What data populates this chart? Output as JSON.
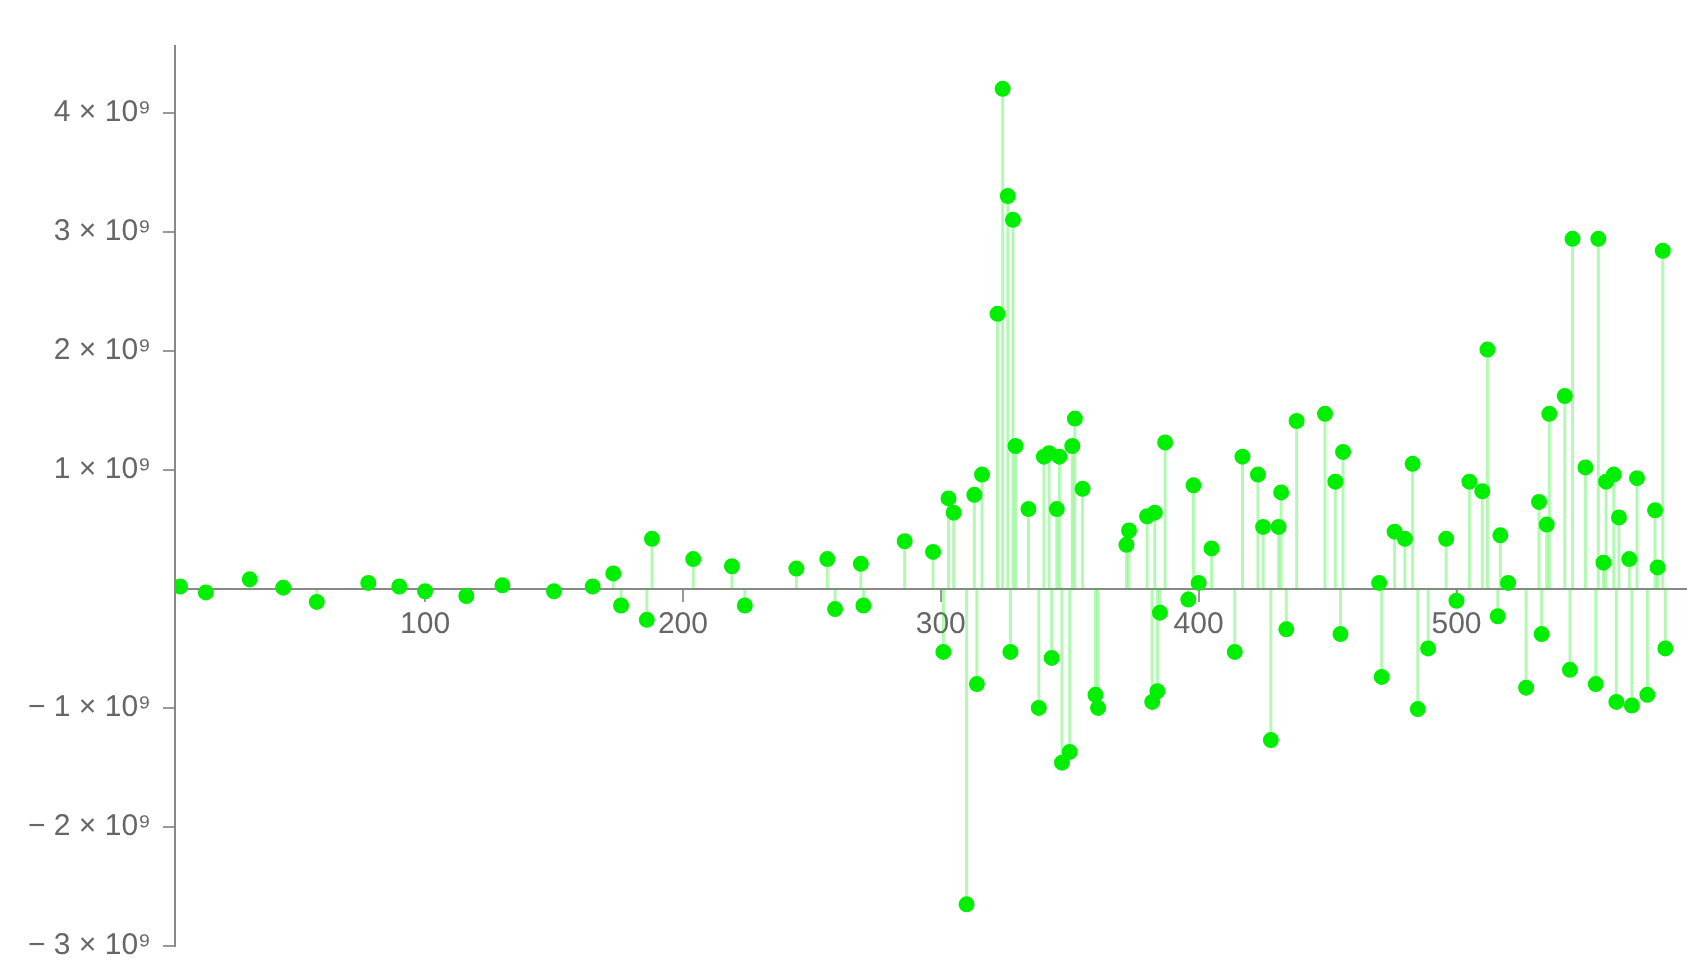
{
  "chart_data": {
    "type": "lollipop",
    "color": "#00ee00",
    "marker": "circle",
    "x": [
      5,
      15,
      32,
      45,
      58,
      78,
      90,
      100,
      116,
      130,
      150,
      165,
      173,
      176,
      186,
      188,
      204,
      219,
      224,
      244,
      256,
      259,
      269,
      270,
      286,
      297,
      301,
      303,
      305,
      310,
      313,
      314,
      316,
      322,
      324,
      326,
      327,
      328,
      329,
      334,
      338,
      340,
      342,
      343,
      345,
      346,
      347,
      350,
      351,
      352,
      355,
      360,
      361,
      372,
      373,
      380,
      382,
      383,
      384,
      385,
      387,
      396,
      398,
      400,
      405,
      414,
      417,
      423,
      425,
      428,
      431,
      432,
      434,
      438,
      449,
      453,
      455,
      456,
      470,
      471,
      476,
      480,
      483,
      485,
      489,
      496,
      500,
      505,
      510,
      512,
      516,
      517,
      520,
      527,
      532,
      533,
      535,
      536,
      542,
      544,
      545,
      550,
      554,
      555,
      557,
      558,
      561,
      562,
      563,
      567,
      568,
      570,
      574,
      577,
      578,
      580,
      581
    ],
    "values": [
      20000000,
      -30000000,
      80000000,
      10000000,
      -110000000,
      50000000,
      20000000,
      -20000000,
      -60000000,
      30000000,
      -20000000,
      20000000,
      130000000,
      -140000000,
      -260000000,
      420000000,
      250000000,
      190000000,
      -140000000,
      170000000,
      250000000,
      -170000000,
      210000000,
      -140000000,
      400000000,
      310000000,
      -530000000,
      760000000,
      640000000,
      -2650000000,
      790000000,
      -800000000,
      960000000,
      2310000000,
      4200000000,
      3300000000,
      -530000000,
      3100000000,
      1200000000,
      670000000,
      -1000000000,
      1110000000,
      1140000000,
      -580000000,
      670000000,
      1110000000,
      -1460000000,
      -1370000000,
      1200000000,
      1430000000,
      840000000,
      -890000000,
      -1000000000,
      370000000,
      490000000,
      610000000,
      -950000000,
      640000000,
      -860000000,
      -200000000,
      1230000000,
      -90000000,
      870000000,
      50000000,
      340000000,
      -530000000,
      1110000000,
      960000000,
      520000000,
      -1270000000,
      520000000,
      810000000,
      -340000000,
      1410000000,
      1470000000,
      900000000,
      -380000000,
      1150000000,
      50000000,
      -740000000,
      480000000,
      420000000,
      1050000000,
      -1010000000,
      -500000000,
      420000000,
      -100000000,
      900000000,
      820000000,
      2010000000,
      -230000000,
      450000000,
      50000000,
      -830000000,
      730000000,
      -380000000,
      540000000,
      1470000000,
      1620000000,
      -680000000,
      2940000000,
      1020000000,
      -800000000,
      2940000000,
      220000000,
      900000000,
      960000000,
      -950000000,
      600000000,
      250000000,
      -980000000,
      930000000,
      -890000000,
      660000000,
      180000000,
      2840000000,
      -500000000
    ],
    "xlim": [
      3,
      589
    ],
    "ylim": [
      -3000000000,
      4560000000
    ],
    "xticks": [
      100,
      200,
      300,
      400,
      500
    ],
    "yticks": [
      {
        "value": -3000000000,
        "label": "− 3 × 10⁹"
      },
      {
        "value": -2000000000,
        "label": "− 2 × 10⁹"
      },
      {
        "value": -1000000000,
        "label": "− 1 × 10⁹"
      },
      {
        "value": 1000000000,
        "label": "1 × 10⁹"
      },
      {
        "value": 2000000000,
        "label": "2 × 10⁹"
      },
      {
        "value": 3000000000,
        "label": "3 × 10⁹"
      },
      {
        "value": 4000000000,
        "label": "4 × 10⁹"
      }
    ]
  }
}
